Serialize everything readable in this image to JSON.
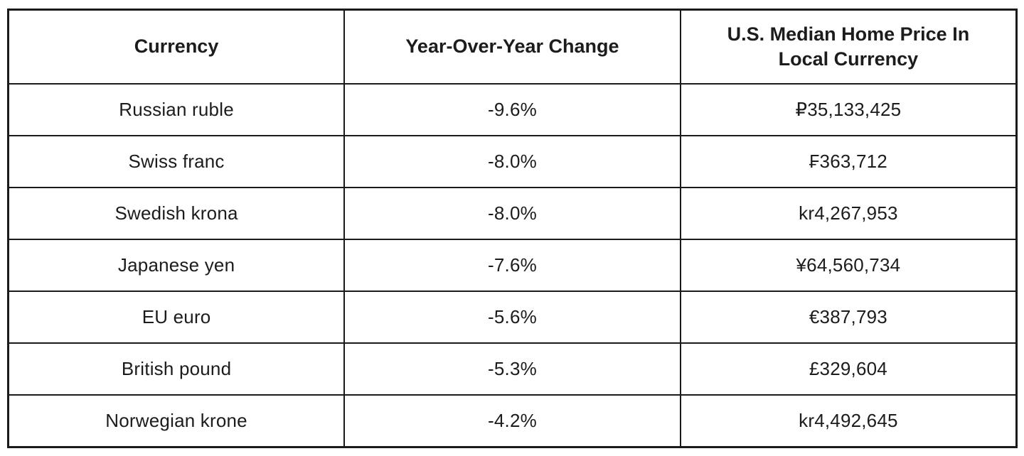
{
  "table": {
    "columns": [
      "Currency",
      "Year-Over-Year Change",
      "U.S. Median Home Price In Local Currency"
    ],
    "rows": [
      {
        "currency": "Russian ruble",
        "change": "-9.6%",
        "price": "₽35,133,425"
      },
      {
        "currency": "Swiss franc",
        "change": "-8.0%",
        "price": "₣363,712"
      },
      {
        "currency": "Swedish krona",
        "change": "-8.0%",
        "price": "kr4,267,953"
      },
      {
        "currency": "Japanese yen",
        "change": "-7.6%",
        "price": "¥64,560,734"
      },
      {
        "currency": "EU euro",
        "change": "-5.6%",
        "price": "€387,793"
      },
      {
        "currency": "British pound",
        "change": "-5.3%",
        "price": "£329,604"
      },
      {
        "currency": "Norwegian krone",
        "change": "-4.2%",
        "price": "kr4,492,645"
      }
    ],
    "colors": {
      "border": "#1a1a1a",
      "text": "#1c1c1c",
      "background": "#ffffff"
    }
  },
  "chart_data": {
    "type": "table",
    "columns": [
      "Currency",
      "Year-Over-Year Change",
      "U.S. Median Home Price In Local Currency"
    ],
    "rows": [
      [
        "Russian ruble",
        "-9.6%",
        "₽35,133,425"
      ],
      [
        "Swiss franc",
        "-8.0%",
        "₣363,712"
      ],
      [
        "Swedish krona",
        "-8.0%",
        "kr4,267,953"
      ],
      [
        "Japanese yen",
        "-7.6%",
        "¥64,560,734"
      ],
      [
        "EU euro",
        "-5.6%",
        "€387,793"
      ],
      [
        "British pound",
        "-5.3%",
        "£329,604"
      ],
      [
        "Norwegian krone",
        "-4.2%",
        "kr4,492,645"
      ]
    ],
    "yoy_change_percent": [
      -9.6,
      -8.0,
      -8.0,
      -7.6,
      -5.6,
      -5.3,
      -4.2
    ],
    "price_local_currency": [
      35133425,
      363712,
      4267953,
      64560734,
      387793,
      329604,
      4492645
    ],
    "title": "",
    "legend": false,
    "grid": true
  }
}
